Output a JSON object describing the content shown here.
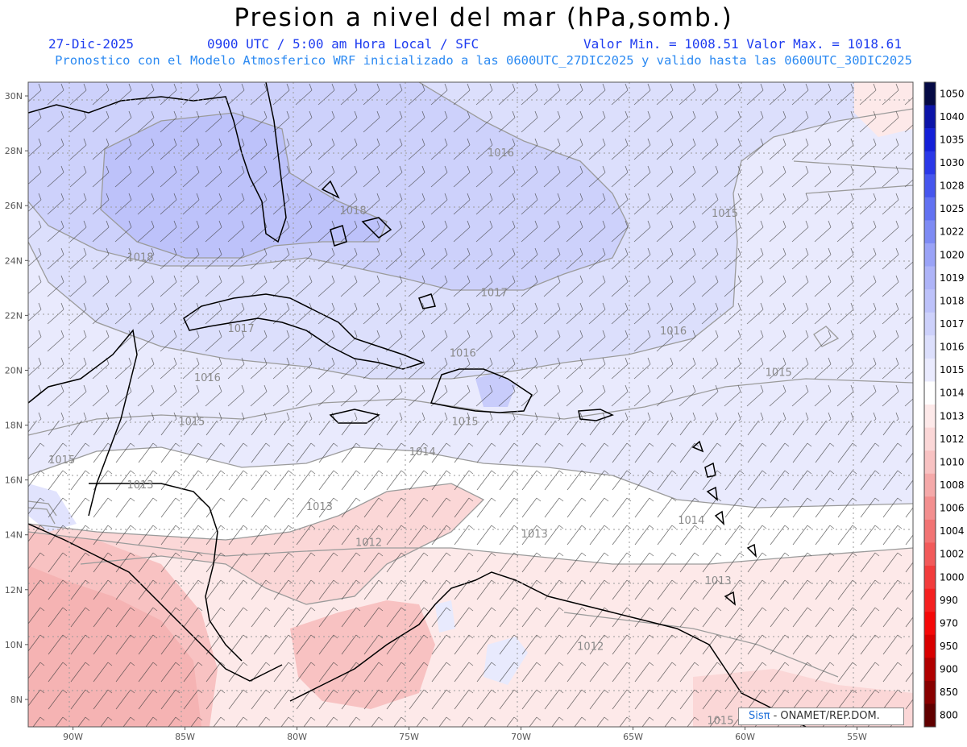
{
  "header": {
    "title": "Presion a nivel del mar (hPa,somb.)",
    "date": "27-Dic-2025",
    "time": "0900 UTC / 5:00 am Hora Local / SFC",
    "minmax": "Valor Min. = 1008.51  Valor Max. = 1018.61",
    "model": "Pronostico con el Modelo Atmosferico WRF inicializado a las 0600UTC_27DIC2025 y valido hasta las  0600UTC_30DIC2025"
  },
  "map": {
    "lat_range": [
      7,
      30.5
    ],
    "lon_range": [
      -92,
      -52.5
    ],
    "lat_ticks": [
      "30N",
      "28N",
      "26N",
      "24N",
      "22N",
      "20N",
      "18N",
      "16N",
      "14N",
      "12N",
      "10N",
      "8N"
    ],
    "lon_ticks": [
      "90W",
      "85W",
      "80W",
      "75W",
      "70W",
      "65W",
      "60W",
      "55W"
    ],
    "isobar_labels": [
      {
        "text": "1016",
        "lon": -70.9,
        "lat": 27.8
      },
      {
        "text": "1018",
        "lon": -77.5,
        "lat": 25.7
      },
      {
        "text": "1018",
        "lon": -87.0,
        "lat": 24.0
      },
      {
        "text": "1017",
        "lon": -71.2,
        "lat": 22.7
      },
      {
        "text": "1015",
        "lon": -60.9,
        "lat": 25.6
      },
      {
        "text": "1016",
        "lon": -63.2,
        "lat": 21.3
      },
      {
        "text": "1017",
        "lon": -82.5,
        "lat": 21.4
      },
      {
        "text": "1016",
        "lon": -72.6,
        "lat": 20.5
      },
      {
        "text": "1016",
        "lon": -84.0,
        "lat": 19.6
      },
      {
        "text": "1015",
        "lon": -58.5,
        "lat": 19.8
      },
      {
        "text": "1015",
        "lon": -84.7,
        "lat": 18.0
      },
      {
        "text": "1015",
        "lon": -72.5,
        "lat": 18.0
      },
      {
        "text": "1014",
        "lon": -74.4,
        "lat": 16.9
      },
      {
        "text": "1015",
        "lon": -90.5,
        "lat": 16.6
      },
      {
        "text": "1013",
        "lon": -87.0,
        "lat": 15.7
      },
      {
        "text": "1013",
        "lon": -79.0,
        "lat": 14.9
      },
      {
        "text": "1014",
        "lon": -62.4,
        "lat": 14.4
      },
      {
        "text": "1013",
        "lon": -69.4,
        "lat": 13.9
      },
      {
        "text": "1012",
        "lon": -76.8,
        "lat": 13.6
      },
      {
        "text": "1013",
        "lon": -61.2,
        "lat": 12.2
      },
      {
        "text": "1012",
        "lon": -66.9,
        "lat": 9.8
      },
      {
        "text": "1015",
        "lon": -61.1,
        "lat": 7.1
      }
    ]
  },
  "colorbar": {
    "levels": [
      "1050",
      "1040",
      "1035",
      "1030",
      "1028",
      "1025",
      "1022",
      "1020",
      "1019",
      "1018",
      "1017",
      "1016",
      "1015",
      "1014",
      "1013",
      "1012",
      "1010",
      "1008",
      "1006",
      "1004",
      "1002",
      "1000",
      "990",
      "970",
      "950",
      "900",
      "850",
      "800"
    ],
    "colors": [
      "#050a45",
      "#0c14a8",
      "#1420d8",
      "#2a38e8",
      "#4656ee",
      "#6272f2",
      "#7e8bf4",
      "#9aa3f7",
      "#aeb4f8",
      "#bdc2fa",
      "#cdd1fb",
      "#dcdffc",
      "#eaebfe",
      "#ffffff",
      "#fde9e9",
      "#fbd7d7",
      "#f8c2c2",
      "#f5a9a9",
      "#f38f8f",
      "#f27474",
      "#f25a5a",
      "#f23c3c",
      "#f52020",
      "#f50808",
      "#d80000",
      "#b00000",
      "#880000",
      "#600000"
    ]
  },
  "credit": {
    "brand": "Sisπ",
    "org": " - ONAMET/REP.DOM."
  }
}
